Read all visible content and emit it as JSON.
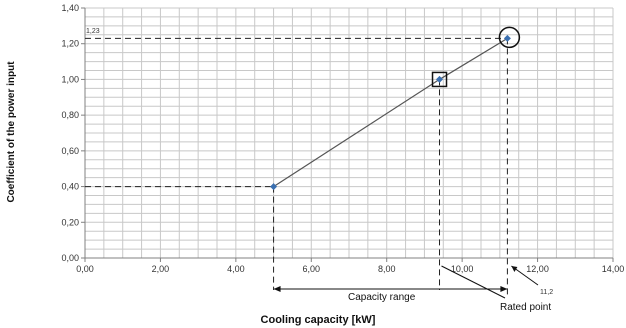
{
  "chart_data": {
    "type": "scatter",
    "title": "",
    "xlabel": "Cooling capacity [kW]",
    "ylabel": "Coefficient of the power input",
    "xlim": [
      0,
      14
    ],
    "ylim": [
      0,
      1.4
    ],
    "x_tick_labels": [
      "0,00",
      "2,00",
      "4,00",
      "6,00",
      "8,00",
      "10,00",
      "12,00",
      "14,00"
    ],
    "y_tick_labels": [
      "0,00",
      "0,20",
      "0,40",
      "0,60",
      "0,80",
      "1,00",
      "1,20",
      "1,40"
    ],
    "grid": true,
    "series": [
      {
        "x": [
          5.0,
          9.4,
          11.2
        ],
        "y": [
          0.4,
          1.0,
          1.23
        ]
      }
    ],
    "guides": {
      "y_value_label": "1,23",
      "x_value_label": "11,2"
    },
    "annotations": {
      "capacity_range": "Capacity range",
      "rated_point": "Rated point"
    },
    "colors": {
      "marker": "#3a6fb0",
      "line": "#555555",
      "grid": "#c8c8c8"
    }
  }
}
